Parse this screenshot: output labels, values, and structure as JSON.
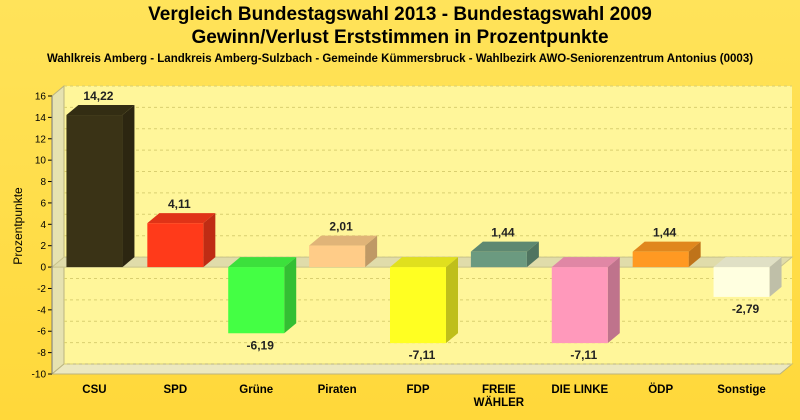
{
  "title": "Vergleich Bundestagswahl 2013 - Bundestagswahl 2009",
  "subtitle": "Gewinn/Verlust Erststimmen in Prozentpunkte",
  "caption": "Wahlkreis Amberg - Landkreis Amberg-Sulzbach - Gemeinde Kümmersbruck - Wahlbezirk AWO-Seniorenzentrum Antonius (0003)",
  "chart_data": {
    "type": "bar",
    "title": "Vergleich Bundestagswahl 2013 - Bundestagswahl 2009",
    "subtitle": "Gewinn/Verlust Erststimmen in Prozentpunkte",
    "ylabel": "Prozentpunkte",
    "xlabel": "",
    "ylim": [
      -10,
      16
    ],
    "yticks": [
      -10,
      -8,
      -6,
      -4,
      -2,
      0,
      2,
      4,
      6,
      8,
      10,
      12,
      14,
      16
    ],
    "grid": true,
    "categories": [
      [
        "CSU"
      ],
      [
        "SPD"
      ],
      [
        "Grüne"
      ],
      [
        "Piraten"
      ],
      [
        "FDP"
      ],
      [
        "FREIE",
        "WÄHLER"
      ],
      [
        "DIE LINKE"
      ],
      [
        "ÖDP"
      ],
      [
        "Sonstige"
      ]
    ],
    "values": [
      14.22,
      4.11,
      -6.19,
      2.01,
      -7.11,
      1.44,
      -7.11,
      1.44,
      -2.79
    ],
    "data_labels": [
      "14,22",
      "4,11",
      "-6,19",
      "2,01",
      "-7,11",
      "1,44",
      "-7,11",
      "1,44",
      "-2,79"
    ],
    "colors": [
      "#3a3316",
      "#ff3a1a",
      "#44ff44",
      "#ffcc88",
      "#ffff22",
      "#6b9a80",
      "#ff99bb",
      "#ff9922",
      "#ffffe0"
    ]
  }
}
